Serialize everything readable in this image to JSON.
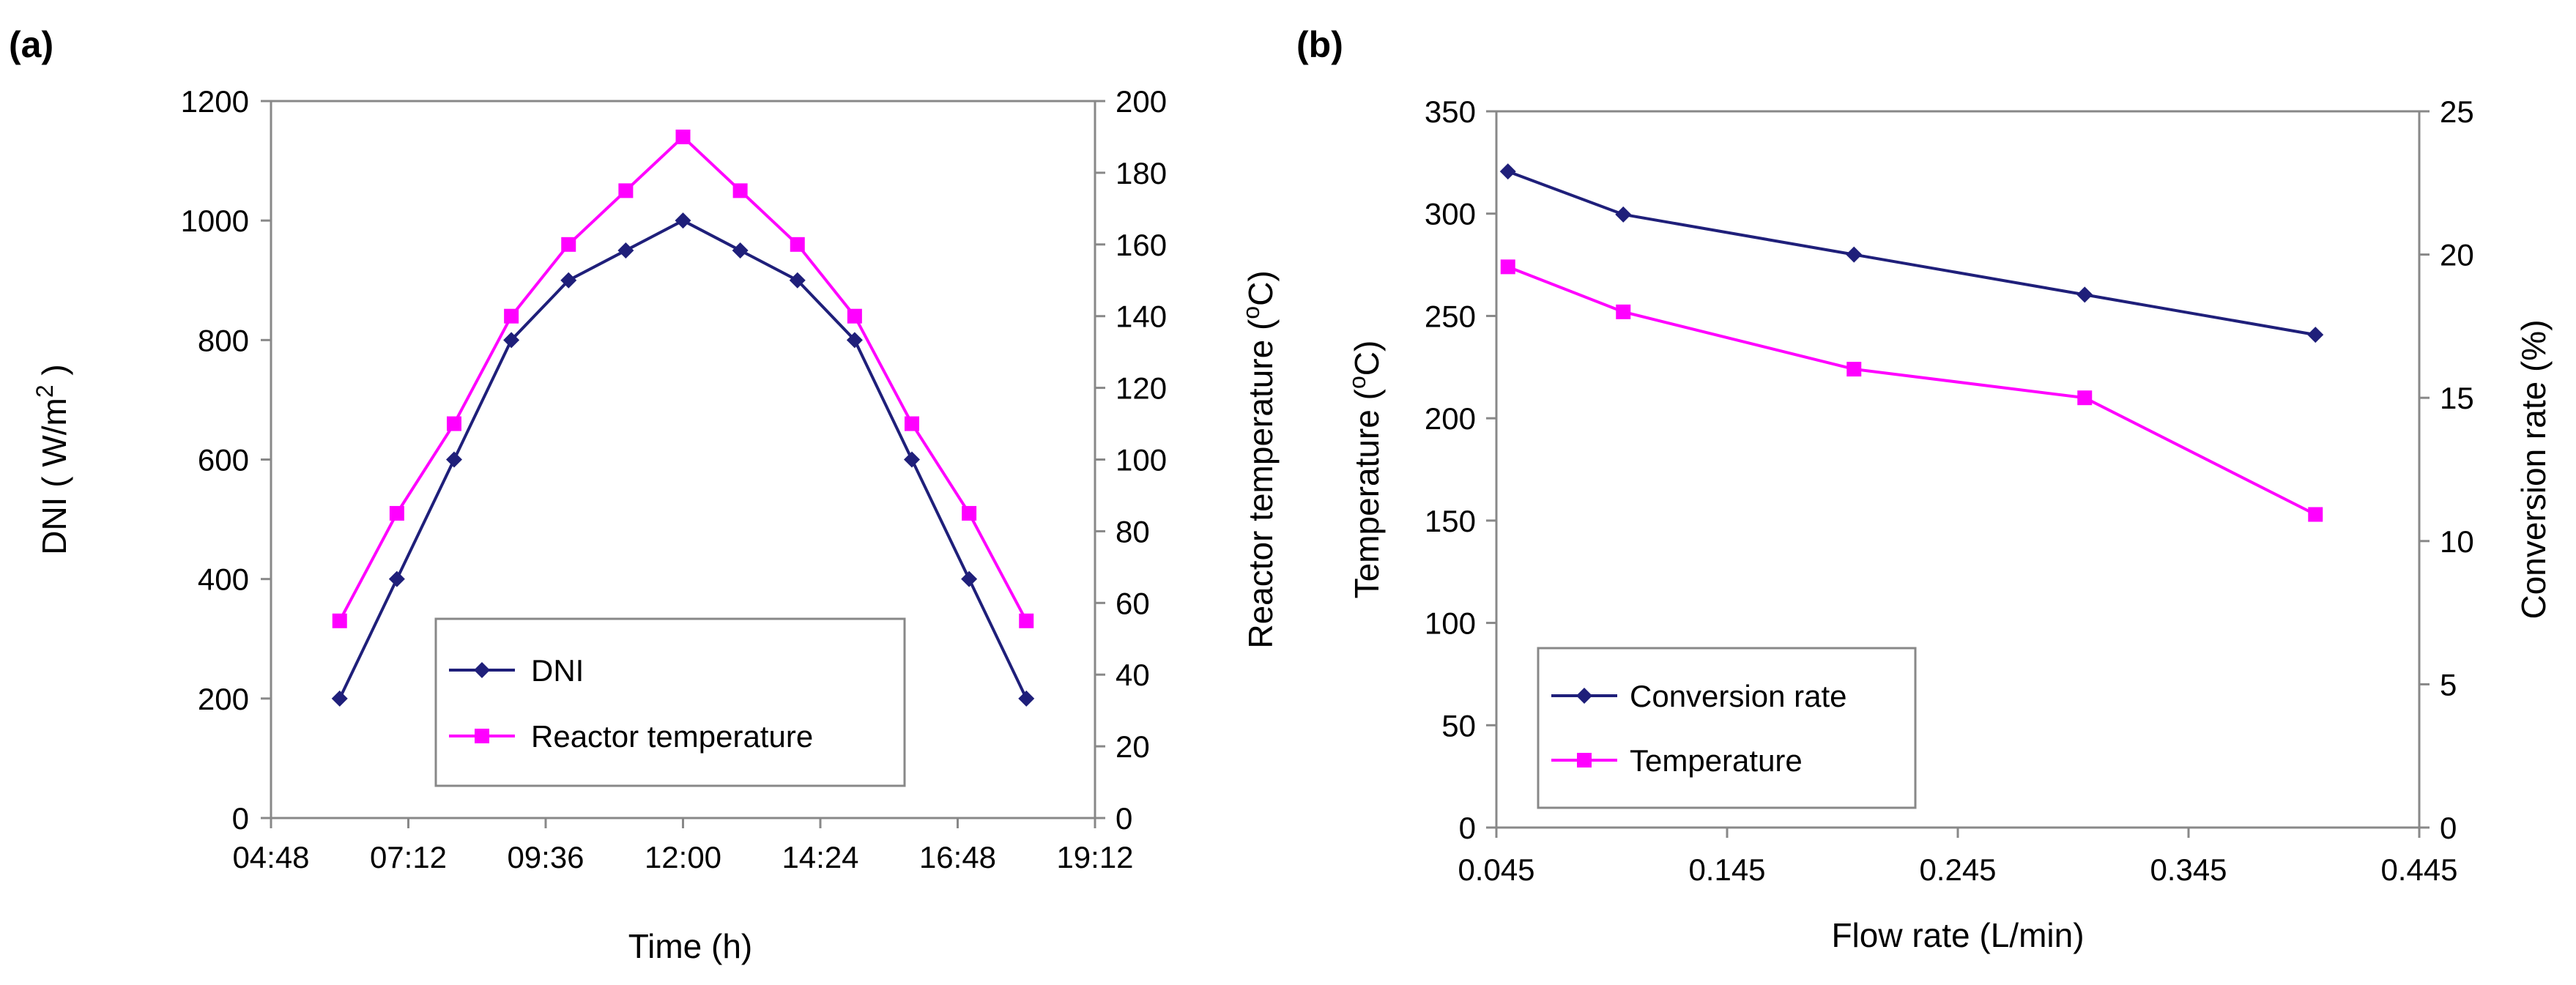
{
  "chart_data": [
    {
      "panel_label": "(a)",
      "type": "line",
      "xlabel": "Time (h)",
      "ylabel": "DNI ( W/m",
      "ylabel_sup": "2",
      "ylabel_end": " )",
      "y2label": "Reactor temperature (",
      "y2label_sup": "o",
      "y2label_end": "C)",
      "x_ticks": [
        "04:48",
        "07:12",
        "09:36",
        "12:00",
        "14:24",
        "16:48",
        "19:12"
      ],
      "x_tick_values_h": [
        4.8,
        7.2,
        9.6,
        12.0,
        14.4,
        16.8,
        19.2
      ],
      "xlim_h": [
        4.8,
        19.2
      ],
      "ylim": [
        0,
        1200
      ],
      "y_ticks": [
        "0",
        "200",
        "400",
        "600",
        "800",
        "1000",
        "1200"
      ],
      "y2lim": [
        0,
        200
      ],
      "y2_ticks": [
        "0",
        "20",
        "40",
        "60",
        "80",
        "100",
        "120",
        "140",
        "160",
        "180",
        "200"
      ],
      "x_h": [
        6,
        7,
        8,
        9,
        10,
        11,
        12,
        13,
        14,
        15,
        16,
        17,
        18
      ],
      "series": [
        {
          "name": "DNI",
          "axis": "left",
          "marker": "diamond",
          "color": "#1f1f7a",
          "values": [
            200,
            400,
            600,
            800,
            900,
            950,
            1000,
            950,
            900,
            800,
            600,
            400,
            200
          ]
        },
        {
          "name": "Reactor temperature",
          "axis": "right",
          "marker": "square",
          "color": "#ff00ff",
          "values": [
            55,
            85,
            110,
            140,
            160,
            175,
            190,
            175,
            160,
            140,
            110,
            85,
            55
          ]
        }
      ],
      "legend": [
        "DNI",
        "Reactor temperature"
      ]
    },
    {
      "panel_label": "(b)",
      "type": "line",
      "xlabel": "Flow rate (L/min)",
      "ylabel": "Temperature (",
      "ylabel_sup": "o",
      "ylabel_end": "C)",
      "y2label": "Conversion rate (%)",
      "x_ticks": [
        "0.045",
        "0.145",
        "0.245",
        "0.345",
        "0.445"
      ],
      "x_tick_values": [
        0.045,
        0.145,
        0.245,
        0.345,
        0.445
      ],
      "xlim": [
        0.045,
        0.445
      ],
      "ylim": [
        0,
        350
      ],
      "y_ticks": [
        "0",
        "50",
        "100",
        "150",
        "200",
        "250",
        "300",
        "350"
      ],
      "y2lim": [
        0,
        25
      ],
      "y2_ticks": [
        "0",
        "5",
        "10",
        "15",
        "20",
        "25"
      ],
      "x": [
        0.05,
        0.1,
        0.2,
        0.3,
        0.4
      ],
      "series": [
        {
          "name": "Conversion rate",
          "axis": "right",
          "marker": "diamond",
          "color": "#1f1f7a",
          "values": [
            22.9,
            21.4,
            20.0,
            18.6,
            17.2
          ]
        },
        {
          "name": "Temperature",
          "axis": "left",
          "marker": "square",
          "color": "#ff00ff",
          "values": [
            274,
            252,
            224,
            210,
            153
          ]
        }
      ],
      "legend": [
        "Conversion rate",
        "Temperature"
      ]
    }
  ]
}
